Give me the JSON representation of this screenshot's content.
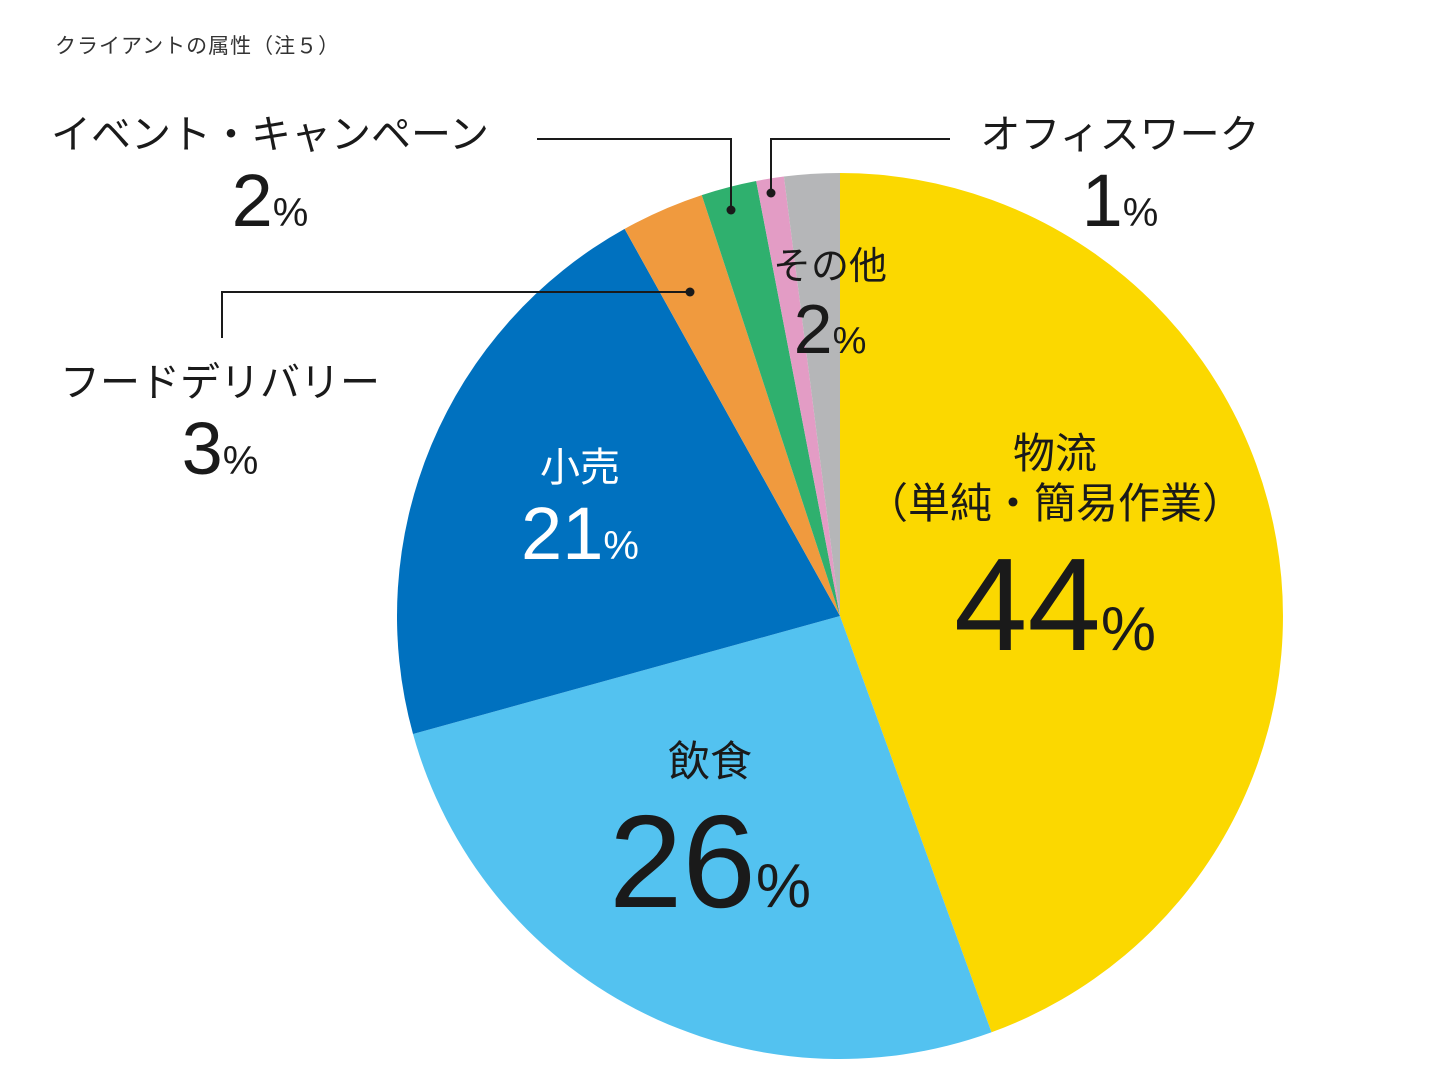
{
  "title": "クライアントの属性（注５）",
  "chart_data": {
    "type": "pie",
    "start_angle_deg": 0,
    "direction": "clockwise",
    "slices": [
      {
        "label": "物流（単純・簡易作業）",
        "label_line1": "物流",
        "label_line2": "（単純・簡易作業）",
        "value": 44,
        "display": "44",
        "color": "#FBD800"
      },
      {
        "label": "飲食",
        "value": 26,
        "display": "26",
        "color": "#53C2F0"
      },
      {
        "label": "小売",
        "value": 21,
        "display": "21",
        "color": "#0071BF"
      },
      {
        "label": "フードデリバリー",
        "value": 3,
        "display": "3",
        "color": "#F09A3E"
      },
      {
        "label": "イベント・キャンペーン",
        "value": 2,
        "display": "2",
        "color": "#2FB06E"
      },
      {
        "label": "オフィスワーク",
        "value": 1,
        "display": "1",
        "color": "#E39CC5"
      },
      {
        "label": "その他",
        "value": 2,
        "display": "2",
        "color": "#B5B6B8"
      }
    ],
    "percent_symbol": "%"
  }
}
